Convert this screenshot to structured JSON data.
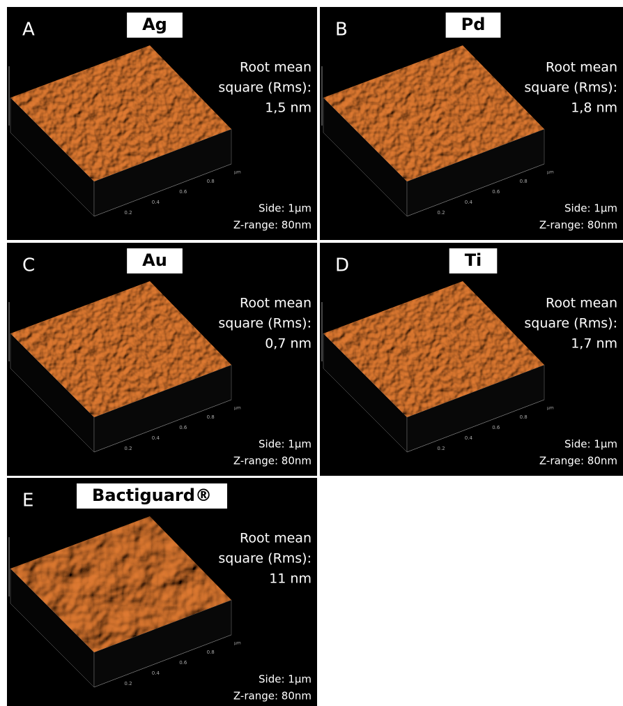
{
  "panels": [
    {
      "letter": "A",
      "title": "Ag",
      "rms": [
        "Root mean",
        "square (Rms):",
        "1,5 nm"
      ],
      "side": "Side: 1µm",
      "zrange": "Z-range: 80nm",
      "ticks": [
        "0.2",
        "0.4",
        "0.6",
        "0.8"
      ],
      "unit": "µm"
    },
    {
      "letter": "B",
      "title": "Pd",
      "rms": [
        "Root mean",
        "square (Rms):",
        "1,8 nm"
      ],
      "side": "Side: 1µm",
      "zrange": "Z-range: 80nm",
      "ticks": [
        "0.2",
        "0.4",
        "0.6",
        "0.8"
      ],
      "unit": "µm"
    },
    {
      "letter": "C",
      "title": "Au",
      "rms": [
        "Root mean",
        "square (Rms):",
        "0,7 nm"
      ],
      "side": "Side: 1µm",
      "zrange": "Z-range: 80nm",
      "ticks": [
        "0.2",
        "0.4",
        "0.6",
        "0.8"
      ],
      "unit": "µm"
    },
    {
      "letter": "D",
      "title": "Ti",
      "rms": [
        "Root mean",
        "square (Rms):",
        "1,7 nm"
      ],
      "side": "Side: 1µm",
      "zrange": "Z-range: 80nm",
      "ticks": [
        "0.2",
        "0.4",
        "0.6",
        "0.8"
      ],
      "unit": "µm"
    },
    {
      "letter": "E",
      "title": "Bactiguard®",
      "rms": [
        "Root mean",
        "square (Rms):",
        "11 nm"
      ],
      "side": "Side: 1µm",
      "zrange": "Z-range: 80nm",
      "ticks": [
        "0.2",
        "0.4",
        "0.6",
        "0.8"
      ],
      "unit": "µm"
    }
  ]
}
